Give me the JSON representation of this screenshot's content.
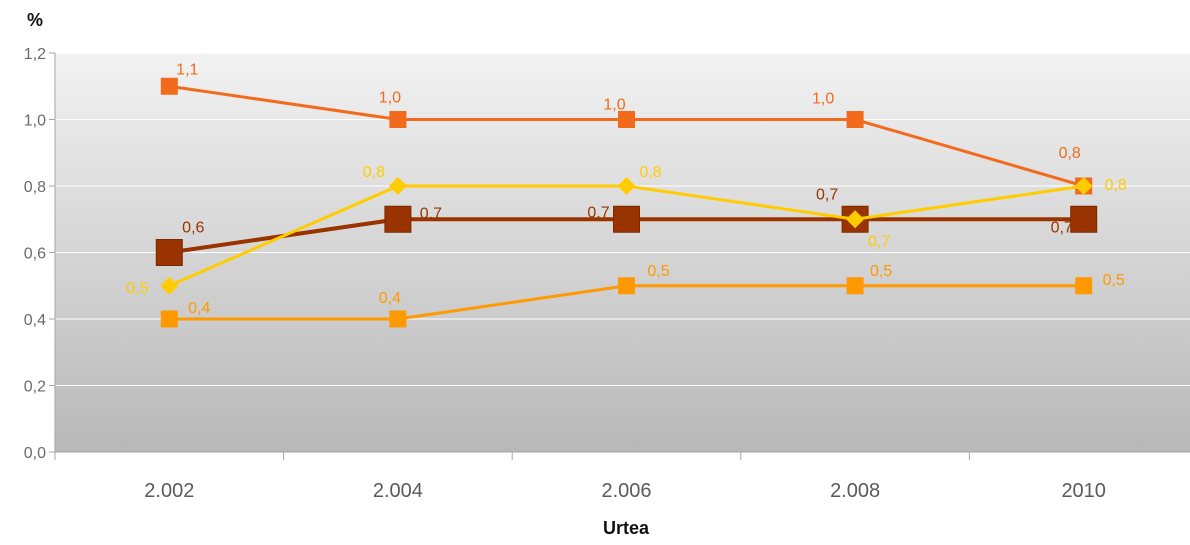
{
  "chart_data": {
    "type": "line",
    "title": "",
    "xlabel": "Urtea",
    "ylabel": "%",
    "categories": [
      "2.002",
      "2.004",
      "2.006",
      "2.008",
      "2010"
    ],
    "ylim": [
      0,
      1.2
    ],
    "yticks": [
      "0,0",
      "0,2",
      "0,4",
      "0,6",
      "0,8",
      "1,0",
      "1,2"
    ],
    "grid": true,
    "legend": "none",
    "series": [
      {
        "values": [
          1.1,
          1.0,
          1.0,
          1.0,
          0.8
        ],
        "labels": [
          "1,1",
          "1,0",
          "1,0",
          "1,0",
          "0,8"
        ],
        "color": "#f26b1d",
        "marker": "square"
      },
      {
        "values": [
          0.6,
          0.7,
          0.7,
          0.7,
          0.7
        ],
        "labels": [
          "0,6",
          "0,7",
          "0,7",
          "0,7",
          "0,7"
        ],
        "color": "#993300",
        "marker": "square-large"
      },
      {
        "values": [
          0.5,
          0.8,
          0.8,
          0.7,
          0.8
        ],
        "labels": [
          "0,5",
          "0,8",
          "0,8",
          "0,7",
          "0,8"
        ],
        "color": "#ffcc00",
        "marker": "diamond"
      },
      {
        "values": [
          0.4,
          0.4,
          0.5,
          0.5,
          0.5
        ],
        "labels": [
          "0,4",
          "0,4",
          "0,5",
          "0,5",
          "0,5"
        ],
        "color": "#ff9900",
        "marker": "square"
      }
    ]
  }
}
